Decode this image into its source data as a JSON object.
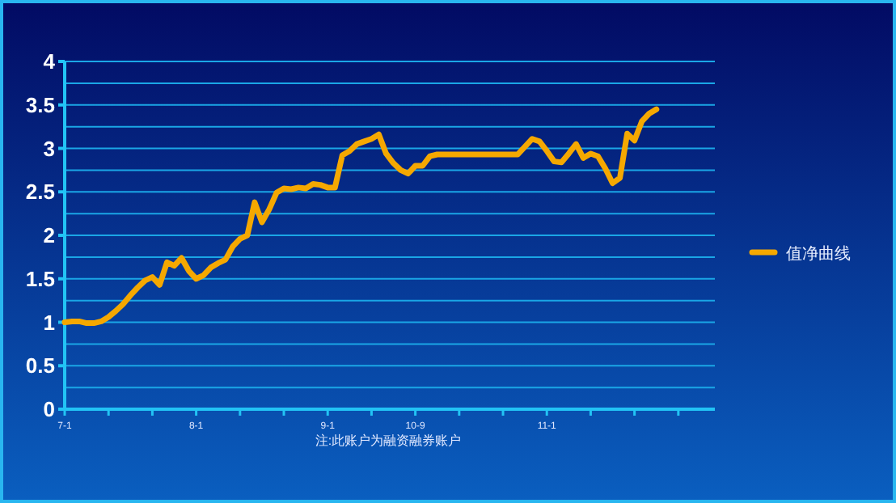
{
  "chart_data": {
    "type": "line",
    "categories": [
      "7-1",
      null,
      null,
      null,
      null,
      null,
      null,
      null,
      null,
      null,
      null,
      null,
      null,
      null,
      null,
      null,
      null,
      null,
      "8-1",
      null,
      null,
      null,
      null,
      null,
      null,
      null,
      null,
      null,
      null,
      null,
      null,
      null,
      null,
      null,
      null,
      null,
      "9-1",
      null,
      null,
      null,
      null,
      null,
      null,
      null,
      null,
      null,
      null,
      null,
      "10-9",
      null,
      null,
      null,
      null,
      null,
      null,
      null,
      null,
      null,
      null,
      null,
      null,
      null,
      null,
      null,
      null,
      null,
      "11-1",
      null,
      null,
      null,
      null,
      null,
      null,
      null,
      null,
      null,
      null,
      null,
      null,
      null,
      null,
      null,
      null,
      null,
      null,
      null,
      null,
      null,
      null,
      null
    ],
    "series": [
      {
        "name": "值净曲线",
        "color": "#f5a800",
        "values": [
          1.0,
          1.01,
          1.01,
          0.99,
          0.99,
          1.01,
          1.06,
          1.13,
          1.21,
          1.31,
          1.4,
          1.48,
          1.52,
          1.43,
          1.69,
          1.65,
          1.74,
          1.59,
          1.5,
          1.54,
          1.63,
          1.68,
          1.72,
          1.87,
          1.96,
          2.0,
          2.38,
          2.15,
          2.3,
          2.49,
          2.54,
          2.53,
          2.55,
          2.54,
          2.59,
          2.58,
          2.55,
          2.55,
          2.92,
          2.97,
          3.05,
          3.08,
          3.11,
          3.16,
          2.94,
          2.83,
          2.75,
          2.71,
          2.8,
          2.8,
          2.91,
          2.93,
          2.93,
          2.93,
          2.93,
          2.93,
          2.93,
          2.93,
          2.93,
          2.93,
          2.93,
          2.93,
          2.93,
          3.02,
          3.11,
          3.08,
          2.97,
          2.85,
          2.84,
          2.94,
          3.05,
          2.89,
          2.94,
          2.91,
          2.77,
          2.6,
          2.66,
          3.17,
          3.09,
          3.31,
          3.4,
          3.45,
          null,
          null,
          null,
          null,
          null,
          null,
          null,
          null
        ]
      }
    ],
    "ylim": [
      0,
      4
    ],
    "yticks": [
      0,
      0.5,
      1,
      1.5,
      2,
      2.5,
      3,
      3.5,
      4
    ],
    "grid": "y",
    "legend": "right",
    "marker": "none",
    "line_style": "solid",
    "annotations": [
      "注:此账户为融资融券账户"
    ]
  }
}
